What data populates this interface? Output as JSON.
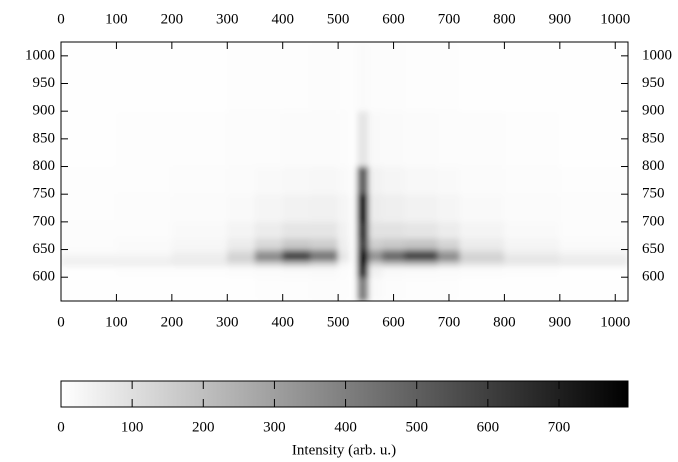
{
  "chart_data": {
    "type": "heatmap",
    "xbins": [
      0,
      100,
      200,
      300,
      350,
      400,
      450,
      500,
      520,
      535,
      555,
      580,
      620,
      680,
      720,
      800,
      900,
      1023
    ],
    "ybins": [
      557,
      600,
      620,
      630,
      640,
      650,
      670,
      700,
      750,
      800,
      900,
      1025
    ],
    "z": [
      [
        3,
        3,
        3,
        4,
        5,
        6,
        8,
        5,
        2,
        400,
        20,
        8,
        6,
        5,
        4,
        3,
        3
      ],
      [
        4,
        5,
        6,
        8,
        12,
        15,
        18,
        8,
        3,
        650,
        40,
        18,
        15,
        12,
        8,
        5,
        4
      ],
      [
        50,
        50,
        60,
        90,
        150,
        200,
        150,
        30,
        5,
        750,
        150,
        200,
        220,
        150,
        90,
        70,
        60
      ],
      [
        40,
        40,
        60,
        150,
        400,
        650,
        450,
        80,
        10,
        780,
        350,
        500,
        620,
        380,
        150,
        80,
        60
      ],
      [
        15,
        20,
        40,
        110,
        300,
        500,
        380,
        70,
        10,
        700,
        300,
        420,
        520,
        300,
        110,
        50,
        30
      ],
      [
        10,
        15,
        25,
        60,
        120,
        170,
        150,
        50,
        10,
        600,
        150,
        170,
        180,
        130,
        60,
        30,
        15
      ],
      [
        8,
        10,
        18,
        35,
        60,
        80,
        80,
        40,
        10,
        650,
        90,
        90,
        80,
        60,
        35,
        20,
        10
      ],
      [
        6,
        8,
        12,
        20,
        30,
        40,
        45,
        30,
        8,
        770,
        60,
        50,
        40,
        30,
        20,
        12,
        8
      ],
      [
        5,
        6,
        8,
        12,
        18,
        22,
        25,
        20,
        5,
        500,
        40,
        30,
        22,
        18,
        12,
        8,
        5
      ],
      [
        4,
        5,
        6,
        8,
        10,
        12,
        14,
        10,
        4,
        80,
        20,
        15,
        12,
        10,
        8,
        5,
        4
      ],
      [
        3,
        3,
        4,
        5,
        6,
        7,
        8,
        6,
        5,
        15,
        10,
        8,
        6,
        5,
        4,
        3,
        3
      ]
    ],
    "xlim": [
      0,
      1023
    ],
    "ylim": [
      557,
      1025
    ],
    "xticks": [
      0,
      100,
      200,
      300,
      400,
      500,
      600,
      700,
      800,
      900,
      1000
    ],
    "yticks": [
      600,
      650,
      700,
      750,
      800,
      850,
      900,
      950,
      1000
    ],
    "zlim": [
      0,
      797
    ],
    "zticks": [
      0,
      100,
      200,
      300,
      400,
      500,
      600,
      700
    ],
    "colormap": [
      "#ffffff",
      "#000000"
    ],
    "colorbar_label": "Intensity (arb. u.)"
  }
}
